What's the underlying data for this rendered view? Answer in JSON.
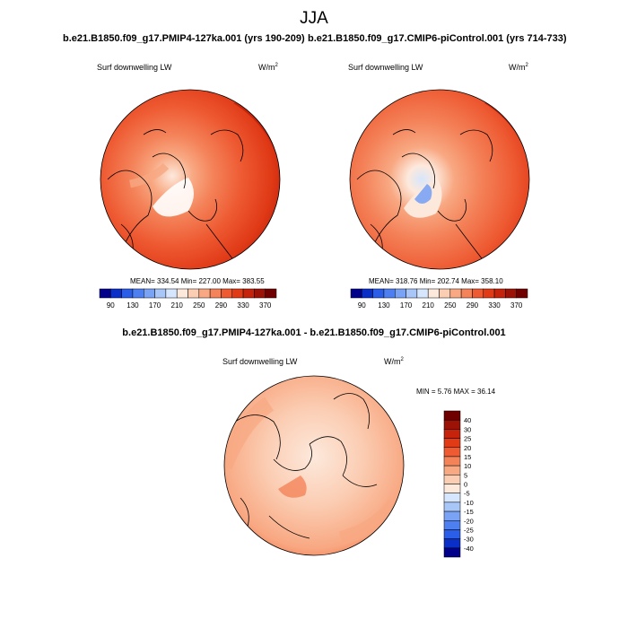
{
  "figure": {
    "season": "JJA"
  },
  "panel_a": {
    "title": "b.e21.B1850.f09_g17.PMIP4-127ka.001 (yrs 190-209)",
    "variable": "Surf downwelling LW",
    "units": "W/m",
    "units_exp": "2",
    "stats": {
      "mean": "334.54",
      "min": "227.00",
      "max": "383.55"
    },
    "stats_label": "MEAN= 334.54  Min= 227.00  Max= 383.55"
  },
  "panel_b": {
    "title": "b.e21.B1850.f09_g17.CMIP6-piControl.001 (yrs 714-733)",
    "variable": "Surf downwelling LW",
    "units": "W/m",
    "units_exp": "2",
    "stats": {
      "mean": "318.76",
      "min": "202.74",
      "max": "358.10"
    },
    "stats_label": "MEAN= 318.76  Min= 202.74  Max= 358.10"
  },
  "panel_diff": {
    "title": "b.e21.B1850.f09_g17.PMIP4-127ka.001 - b.e21.B1850.f09_g17.CMIP6-piControl.001",
    "variable": "Surf downwelling LW",
    "units": "W/m",
    "units_exp": "2",
    "stats": {
      "min": "5.76",
      "max": "36.14"
    },
    "stats_label": "MIN =   5.76 MAX =  36.14"
  },
  "colorbar_abs": {
    "colors": [
      "#00008b",
      "#0a2fc8",
      "#2a5de8",
      "#4d7ff0",
      "#7aa3f5",
      "#a9c6f9",
      "#d6e6fc",
      "#fde9dc",
      "#fbcdb3",
      "#f8a882",
      "#f4835a",
      "#ee5a32",
      "#e03a17",
      "#c5230b",
      "#9c1206",
      "#700000"
    ],
    "labels": [
      "90",
      "130",
      "170",
      "210",
      "250",
      "290",
      "330",
      "370"
    ]
  },
  "colorbar_diff": {
    "colors": [
      "#00008b",
      "#0a2fc8",
      "#2a5de8",
      "#4d7ff0",
      "#7aa3f5",
      "#a9c6f9",
      "#d6e6fc",
      "#fde9dc",
      "#fbcdb3",
      "#f8a882",
      "#f4835a",
      "#ee5a32",
      "#e03a17",
      "#c5230b",
      "#9c1206",
      "#700000"
    ],
    "labels": [
      "40",
      "30",
      "25",
      "20",
      "15",
      "10",
      "5",
      "0",
      "-5",
      "-10",
      "-15",
      "-20",
      "-25",
      "-30",
      "-40"
    ]
  }
}
